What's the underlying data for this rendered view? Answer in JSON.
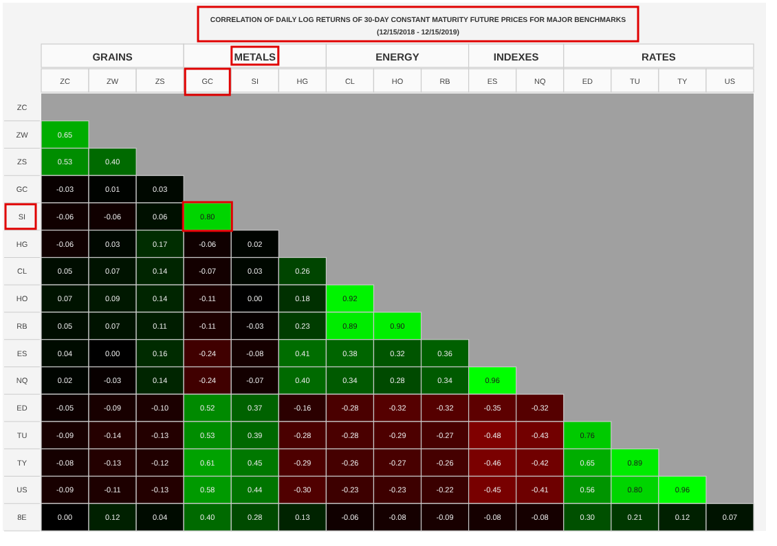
{
  "chart_data": {
    "type": "heatmap",
    "title": "CORRELATION OF DAILY LOG RETURNS OF 30-DAY CONSTANT MATURITY FUTURE PRICES FOR MAJOR BENCHMARKS",
    "subtitle": "(12/15/2018 - 12/15/2019)",
    "annotations": [
      "GRAINS",
      "METALS",
      "ENERGY",
      "INDEXES",
      "RATES"
    ],
    "categories": [
      "ZC",
      "ZW",
      "ZS",
      "GC",
      "SI",
      "HG",
      "CL",
      "HO",
      "RB",
      "ES",
      "NQ",
      "ED",
      "TU",
      "TY",
      "US"
    ],
    "y_categories": [
      "ZC",
      "ZW",
      "ZS",
      "GC",
      "SI",
      "HG",
      "CL",
      "HO",
      "RB",
      "ES",
      "NQ",
      "ED",
      "TU",
      "TY",
      "US",
      "8E"
    ],
    "cell_labels": [
      [
        null,
        null,
        null,
        null,
        null,
        null,
        null,
        null,
        null,
        null,
        null,
        null,
        null,
        null,
        null
      ],
      [
        "0.65",
        null,
        null,
        null,
        null,
        null,
        null,
        null,
        null,
        null,
        null,
        null,
        null,
        null,
        null
      ],
      [
        "0.53",
        "0.40",
        null,
        null,
        null,
        null,
        null,
        null,
        null,
        null,
        null,
        null,
        null,
        null,
        null
      ],
      [
        "-0.03",
        "0.01",
        "0.03",
        null,
        null,
        null,
        null,
        null,
        null,
        null,
        null,
        null,
        null,
        null,
        null
      ],
      [
        "-0.06",
        "-0.06",
        "0.06",
        "0.80",
        null,
        null,
        null,
        null,
        null,
        null,
        null,
        null,
        null,
        null,
        null
      ],
      [
        "-0.06",
        "0.03",
        "0.17",
        "-0.06",
        "0.02",
        null,
        null,
        null,
        null,
        null,
        null,
        null,
        null,
        null,
        null
      ],
      [
        "0.05",
        "0.07",
        "0.14",
        "-0.07",
        "0.03",
        "0.26",
        null,
        null,
        null,
        null,
        null,
        null,
        null,
        null,
        null
      ],
      [
        "0.07",
        "0.09",
        "0.14",
        "-0.11",
        "0.00",
        "0.18",
        "0.92",
        null,
        null,
        null,
        null,
        null,
        null,
        null,
        null
      ],
      [
        "0.05",
        "0.07",
        "0.11",
        "-0.11",
        "-0.03",
        "0.23",
        "0.89",
        "0.90",
        null,
        null,
        null,
        null,
        null,
        null,
        null
      ],
      [
        "0.04",
        "0.00",
        "0.16",
        "-0.24",
        "-0.08",
        "0.41",
        "0.38",
        "0.32",
        "0.36",
        null,
        null,
        null,
        null,
        null,
        null
      ],
      [
        "0.02",
        "-0.03",
        "0.14",
        "-0.24",
        "-0.07",
        "0.40",
        "0.34",
        "0.28",
        "0.34",
        "0.96",
        null,
        null,
        null,
        null,
        null
      ],
      [
        "-0.05",
        "-0.09",
        "-0.10",
        "0.52",
        "0.37",
        "-0.16",
        "-0.28",
        "-0.32",
        "-0.32",
        "-0.35",
        "-0.32",
        null,
        null,
        null,
        null
      ],
      [
        "-0.09",
        "-0.14",
        "-0.13",
        "0.53",
        "0.39",
        "-0.28",
        "-0.28",
        "-0.29",
        "-0.27",
        "-0.48",
        "-0.43",
        "0.76",
        null,
        null,
        null
      ],
      [
        "-0.08",
        "-0.13",
        "-0.12",
        "0.61",
        "0.45",
        "-0.29",
        "-0.26",
        "-0.27",
        "-0.26",
        "-0.46",
        "-0.42",
        "0.65",
        "0.89",
        null,
        null
      ],
      [
        "-0.09",
        "-0.11",
        "-0.13",
        "0.58",
        "0.44",
        "-0.30",
        "-0.23",
        "-0.23",
        "-0.22",
        "-0.45",
        "-0.41",
        "0.56",
        "0.80",
        "0.96",
        null
      ],
      [
        "0.00",
        "0.12",
        "0.04",
        "0.40",
        "0.28",
        "0.13",
        "-0.06",
        "-0.08",
        "-0.09",
        "-0.08",
        "-0.08",
        "0.30",
        "0.21",
        "0.12",
        "0.07"
      ]
    ],
    "cells": [
      [
        null,
        null,
        null,
        null,
        null,
        null,
        null,
        null,
        null,
        null,
        null,
        null,
        null,
        null,
        null
      ],
      [
        0.65,
        null,
        null,
        null,
        null,
        null,
        null,
        null,
        null,
        null,
        null,
        null,
        null,
        null,
        null
      ],
      [
        0.53,
        0.4,
        null,
        null,
        null,
        null,
        null,
        null,
        null,
        null,
        null,
        null,
        null,
        null,
        null
      ],
      [
        -0.03,
        0.01,
        0.03,
        null,
        null,
        null,
        null,
        null,
        null,
        null,
        null,
        null,
        null,
        null,
        null
      ],
      [
        -0.06,
        -0.06,
        0.06,
        0.8,
        null,
        null,
        null,
        null,
        null,
        null,
        null,
        null,
        null,
        null,
        null
      ],
      [
        -0.06,
        0.03,
        0.17,
        -0.06,
        0.02,
        null,
        null,
        null,
        null,
        null,
        null,
        null,
        null,
        null,
        null
      ],
      [
        0.05,
        0.07,
        0.14,
        -0.07,
        0.03,
        0.26,
        null,
        null,
        null,
        null,
        null,
        null,
        null,
        null,
        null
      ],
      [
        0.07,
        0.09,
        0.14,
        -0.11,
        0.0,
        0.18,
        0.92,
        null,
        null,
        null,
        null,
        null,
        null,
        null,
        null
      ],
      [
        0.05,
        0.07,
        0.11,
        -0.11,
        -0.03,
        0.23,
        0.89,
        0.9,
        null,
        null,
        null,
        null,
        null,
        null,
        null
      ],
      [
        0.04,
        0.0,
        0.16,
        -0.24,
        -0.08,
        0.41,
        0.38,
        0.32,
        0.36,
        null,
        null,
        null,
        null,
        null,
        null
      ],
      [
        0.02,
        -0.03,
        0.14,
        -0.24,
        -0.07,
        0.4,
        0.34,
        0.28,
        0.34,
        0.96,
        null,
        null,
        null,
        null,
        null
      ],
      [
        -0.05,
        -0.09,
        -0.1,
        0.52,
        0.37,
        -0.16,
        -0.28,
        -0.32,
        -0.32,
        -0.35,
        -0.32,
        null,
        null,
        null,
        null
      ],
      [
        -0.09,
        -0.14,
        -0.13,
        0.53,
        0.39,
        -0.28,
        -0.28,
        -0.29,
        -0.27,
        -0.48,
        -0.43,
        0.76,
        null,
        null,
        null
      ],
      [
        -0.08,
        -0.13,
        -0.12,
        0.61,
        0.45,
        -0.29,
        -0.26,
        -0.27,
        -0.26,
        -0.46,
        -0.42,
        0.65,
        0.89,
        null,
        null
      ],
      [
        -0.09,
        -0.11,
        -0.13,
        0.58,
        0.44,
        -0.3,
        -0.23,
        -0.23,
        -0.22,
        -0.45,
        -0.41,
        0.56,
        0.8,
        0.96,
        null
      ],
      [
        0.0,
        0.12,
        0.04,
        0.4,
        0.28,
        0.13,
        -0.06,
        -0.08,
        -0.09,
        -0.08,
        -0.08,
        0.3,
        0.21,
        0.12,
        0.07
      ]
    ]
  }
}
